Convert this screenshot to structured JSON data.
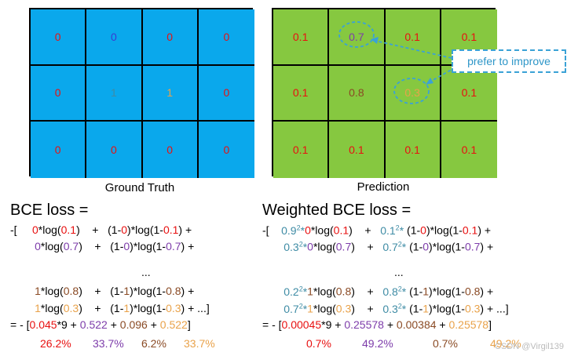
{
  "ground_truth": {
    "caption": "Ground Truth",
    "cells": [
      "0",
      "0",
      "0",
      "0",
      "0",
      "1",
      "1",
      "0",
      "0",
      "0",
      "0",
      "0"
    ],
    "colors": [
      "#e81010",
      "#3a3ad2",
      "#e81010",
      "#e81010",
      "#e81010",
      "#3f8ca5",
      "#e9a24a",
      "#e81010",
      "#e81010",
      "#e81010",
      "#e81010",
      "#e81010"
    ]
  },
  "prediction": {
    "caption": "Prediction",
    "cells": [
      "0.1",
      "0.7",
      "0.1",
      "0.1",
      "0.1",
      "0.8",
      "0.3",
      "0.1",
      "0.1",
      "0.1",
      "0.1",
      "0.1"
    ],
    "colors": [
      "#e81010",
      "#7d3caa",
      "#e81010",
      "#e81010",
      "#e81010",
      "#8a4a24",
      "#e9a24a",
      "#e81010",
      "#e81010",
      "#e81010",
      "#e81010",
      "#e81010"
    ]
  },
  "callout": "prefer to improve",
  "bce": {
    "title": "BCE loss =",
    "result_prefix": "= - [",
    "t1": "0.045",
    "t1_mult": "*9 + ",
    "t2": "0.522",
    "t3": "0.096",
    "t4": "0.522",
    "pct": [
      "26.2%",
      "33.7%",
      "6.2%",
      "33.7%"
    ]
  },
  "wbce": {
    "title": "Weighted BCE loss =",
    "result_prefix": "= - [",
    "t1": "0.00045",
    "t1_mult": "*9 + ",
    "t2": "0.25578",
    "t3": "0.00384",
    "t4": "0.25578",
    "pct": [
      "0.7%",
      "49.2%",
      "0.7%",
      "49.2%"
    ]
  },
  "watermark": "CSDN @Virgil139",
  "colors": {
    "ground_truth_fill": "#0aa8ec",
    "prediction_fill": "#86c840",
    "callout_border": "#3aa2d6"
  }
}
